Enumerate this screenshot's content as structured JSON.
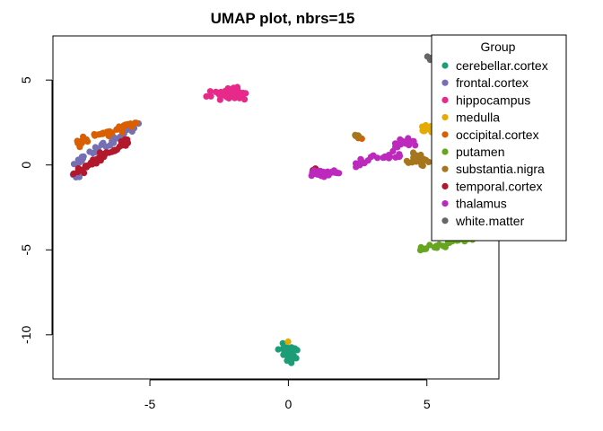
{
  "chart_data": {
    "type": "scatter",
    "title": "UMAP plot, nbrs=15",
    "xlabel": "",
    "ylabel": "",
    "xlim": [
      -8.5,
      7.6
    ],
    "ylim": [
      -12.6,
      7.6
    ],
    "x_ticks": [
      -5,
      0,
      5
    ],
    "y_ticks": [
      -10,
      -5,
      0,
      5
    ],
    "x_tick_labels": [
      "-5",
      "0",
      "5"
    ],
    "y_tick_labels": [
      "-10",
      "-5",
      "0",
      "5"
    ],
    "grid": false,
    "legend": {
      "title": "Group",
      "position": "top-right"
    },
    "series": [
      {
        "name": "cerebellar.cortex",
        "color": "#1B9E77",
        "clusters": [
          {
            "cx": 0.0,
            "cy": -11.1,
            "sx": 0.8,
            "sy": 1.5,
            "n": 45
          }
        ]
      },
      {
        "name": "frontal.cortex",
        "color": "#7570B3",
        "clusters": [
          {
            "cx": -6.6,
            "cy": 1.2,
            "sx": 2.3,
            "sy": 2.2,
            "n": 40,
            "elong": true
          },
          {
            "cx": -7.6,
            "cy": -0.6,
            "sx": 0.8,
            "sy": 0.6,
            "n": 6
          }
        ]
      },
      {
        "name": "hippocampus",
        "color": "#E7298A",
        "clusters": [
          {
            "cx": -2.1,
            "cy": 4.2,
            "sx": 1.9,
            "sy": 0.9,
            "n": 55
          }
        ]
      },
      {
        "name": "medulla",
        "color": "#E6AB02",
        "clusters": [
          {
            "cx": 5.3,
            "cy": 2.1,
            "sx": 1.5,
            "sy": 0.7,
            "n": 18
          },
          {
            "cx": 0.0,
            "cy": -10.4,
            "sx": 0.1,
            "sy": 0.1,
            "n": 1
          }
        ]
      },
      {
        "name": "occipital.cortex",
        "color": "#D95F02",
        "clusters": [
          {
            "cx": -6.5,
            "cy": 1.9,
            "sx": 2.2,
            "sy": 1.2,
            "n": 45,
            "elong": true
          },
          {
            "cx": 2.6,
            "cy": 1.6,
            "sx": 0.3,
            "sy": 0.2,
            "n": 3
          }
        ]
      },
      {
        "name": "putamen",
        "color": "#66A61E",
        "clusters": [
          {
            "cx": 5.9,
            "cy": -4.6,
            "sx": 2.3,
            "sy": 0.9,
            "n": 40,
            "elong": true
          },
          {
            "cx": 1.3,
            "cy": -0.4,
            "sx": 0.2,
            "sy": 0.2,
            "n": 1
          }
        ]
      },
      {
        "name": "substantia.nigra",
        "color": "#A6761D",
        "clusters": [
          {
            "cx": 4.6,
            "cy": 0.3,
            "sx": 1.2,
            "sy": 1.2,
            "n": 22
          },
          {
            "cx": 2.5,
            "cy": 1.7,
            "sx": 0.3,
            "sy": 0.2,
            "n": 4
          }
        ]
      },
      {
        "name": "temporal.cortex",
        "color": "#B2182B",
        "clusters": [
          {
            "cx": -6.8,
            "cy": 0.4,
            "sx": 2.0,
            "sy": 2.0,
            "n": 50,
            "elong": true
          },
          {
            "cx": 1.1,
            "cy": -0.3,
            "sx": 0.6,
            "sy": 0.4,
            "n": 6
          }
        ]
      },
      {
        "name": "thalamus",
        "color": "#BC29BC",
        "clusters": [
          {
            "cx": 1.3,
            "cy": -0.5,
            "sx": 1.6,
            "sy": 0.5,
            "n": 45
          },
          {
            "cx": 3.2,
            "cy": 0.4,
            "sx": 1.8,
            "sy": 0.6,
            "n": 25,
            "elong": true
          },
          {
            "cx": 4.1,
            "cy": 1.3,
            "sx": 1.2,
            "sy": 0.8,
            "n": 18
          }
        ]
      },
      {
        "name": "white.matter",
        "color": "#666666",
        "clusters": [
          {
            "cx": 5.6,
            "cy": 6.4,
            "sx": 1.4,
            "sy": 1.0,
            "n": 40
          }
        ]
      }
    ]
  }
}
